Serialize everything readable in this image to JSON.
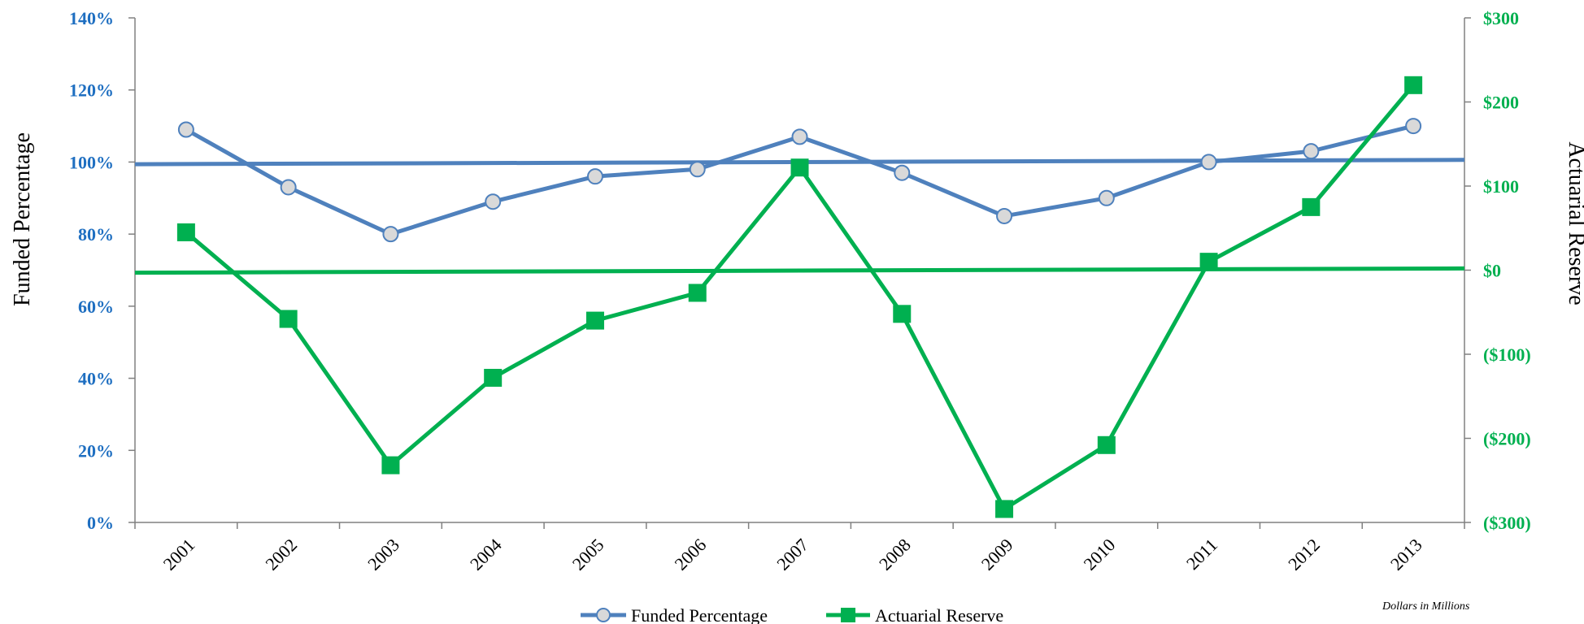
{
  "chart_data": {
    "type": "line",
    "categories": [
      "2001",
      "2002",
      "2003",
      "2004",
      "2005",
      "2006",
      "2007",
      "2008",
      "2009",
      "2010",
      "2011",
      "2012",
      "2013"
    ],
    "series": [
      {
        "name": "Funded Percentage",
        "axis": "left",
        "color": "#4f81bd",
        "marker": "circle",
        "values": [
          109,
          93,
          80,
          89,
          96,
          98,
          107,
          97,
          85,
          90,
          100,
          103,
          110
        ],
        "trendline": [
          99.4,
          100.6
        ]
      },
      {
        "name": "Actuarial Reserve",
        "axis": "right",
        "color": "#00b050",
        "marker": "square",
        "values": [
          45,
          -58,
          -232,
          -128,
          -60,
          -27,
          122,
          -52,
          -284,
          -208,
          10,
          75,
          220
        ],
        "trendline": [
          -3,
          2
        ]
      }
    ],
    "left_axis": {
      "label": "Funded Percentage",
      "color": "#1f6fc1",
      "ylim": [
        0,
        140
      ],
      "ticks": [
        "0%",
        "20%",
        "40%",
        "60%",
        "80%",
        "100%",
        "120%",
        "140%"
      ]
    },
    "right_axis": {
      "label": "Actuarial Reserve",
      "color": "#00b050",
      "ylim": [
        -300,
        300
      ],
      "ticks": [
        "($300)",
        "($200)",
        "($100)",
        "$0",
        "$100",
        "$200",
        "$300"
      ]
    },
    "legend": {
      "position": "bottom"
    },
    "note": "Dollars in Millions",
    "grid": false
  }
}
